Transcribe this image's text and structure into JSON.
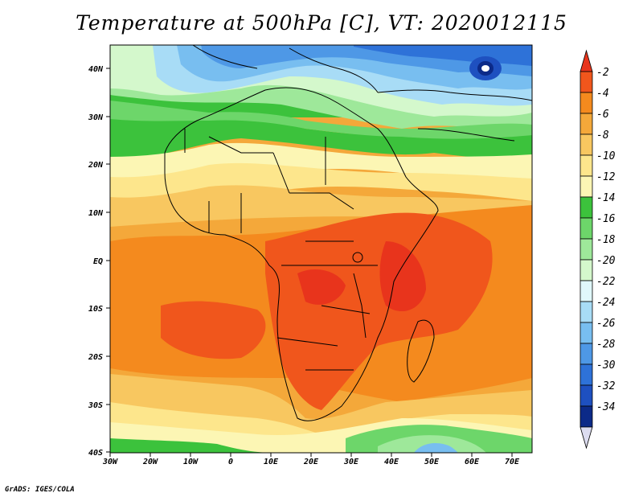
{
  "title": "Temperature at 500hPa [C], VT: 2020012115",
  "credit": "GrADS: IGES/COLA",
  "map": {
    "lat_labels": [
      "40N",
      "30N",
      "20N",
      "10N",
      "EQ",
      "10S",
      "20S",
      "30S",
      "40S"
    ],
    "lon_labels": [
      "30W",
      "20W",
      "10W",
      "0",
      "10E",
      "20E",
      "30E",
      "40E",
      "50E",
      "60E",
      "70E"
    ]
  },
  "colorbar": {
    "labels": [
      "-2",
      "-4",
      "-6",
      "-8",
      "-10",
      "-12",
      "-14",
      "-16",
      "-18",
      "-20",
      "-22",
      "-24",
      "-26",
      "-28",
      "-30",
      "-32",
      "-34"
    ],
    "colors": [
      "#e8341c",
      "#f0561c",
      "#f48a1e",
      "#f4a83a",
      "#f8c760",
      "#fde68c",
      "#fcf6b4",
      "#3cc23c",
      "#6dd66a",
      "#9ee89a",
      "#d4f8cc",
      "#e0f8fb",
      "#a8dcf6",
      "#78bef0",
      "#4e98e6",
      "#2e72d8",
      "#1e50c0",
      "#0c2a88",
      "#dcdcf0"
    ]
  }
}
